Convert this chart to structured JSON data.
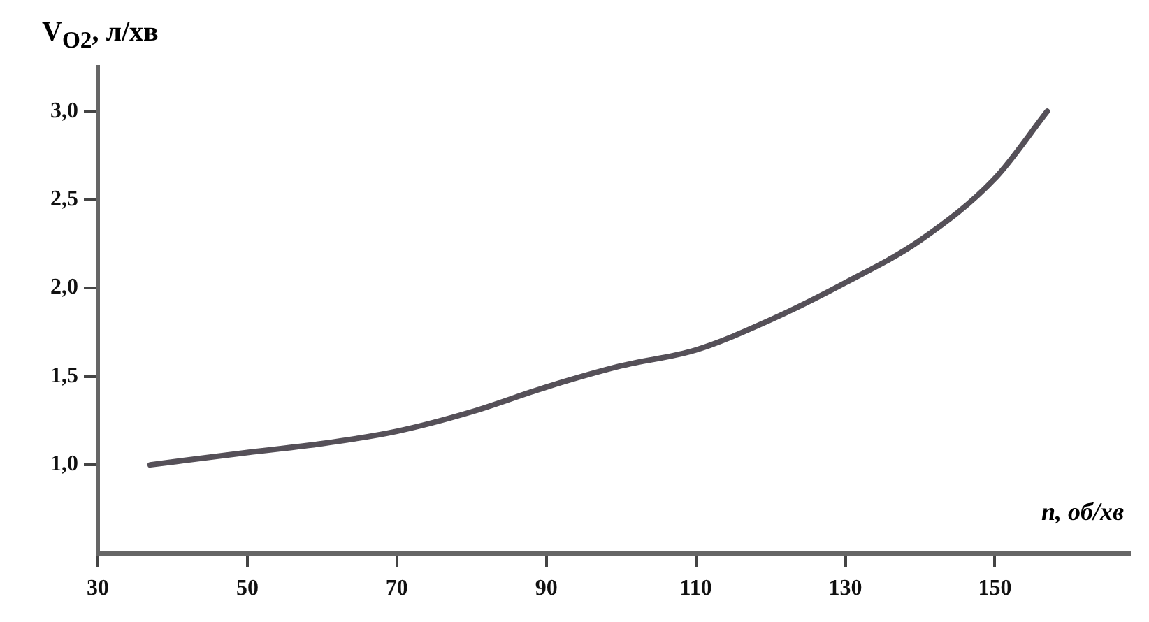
{
  "chart_data": {
    "type": "line",
    "xlabel": "n, об/хв",
    "ylabel": "V$_{O2}$, л/хв",
    "x": [
      37,
      50,
      60,
      70,
      80,
      90,
      100,
      110,
      120,
      130,
      140,
      150,
      157
    ],
    "series": [
      {
        "color": "#555058",
        "values": [
          1.0,
          1.07,
          1.12,
          1.19,
          1.3,
          1.44,
          1.56,
          1.65,
          1.82,
          2.03,
          2.27,
          2.62,
          3.0
        ]
      }
    ],
    "xlim": [
      30,
      168
    ],
    "ylim": [
      0.5,
      3.25
    ],
    "xticks": [
      30,
      50,
      70,
      90,
      110,
      130,
      150
    ],
    "yticks": [
      {
        "value": 1.0,
        "label": "1,0"
      },
      {
        "value": 1.5,
        "label": "1,5"
      },
      {
        "value": 2.0,
        "label": "2,0"
      },
      {
        "value": 2.5,
        "label": "2,5"
      },
      {
        "value": 3.0,
        "label": "3,0"
      }
    ],
    "grid": false,
    "legend": false,
    "marker": "none",
    "line_style": "solid"
  }
}
